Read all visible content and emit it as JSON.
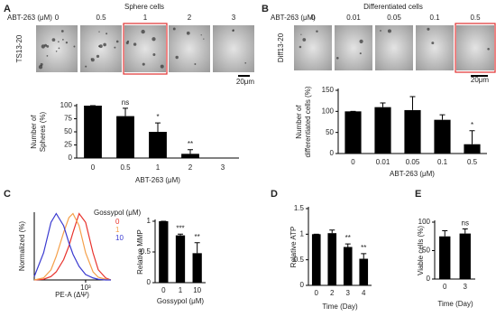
{
  "image_panels": [
    {
      "panel": "A",
      "title": "Sphere cells",
      "reagent": "ABT-263 (μM)",
      "doses": [
        "0",
        "0.5",
        "1",
        "2",
        "3"
      ],
      "cell_line": "TS13-20",
      "scale": "20μm"
    },
    {
      "panel": "B",
      "title": "Differentiated cells",
      "reagent": "ABT-263 (μM)",
      "doses": [
        "0",
        "0.01",
        "0.05",
        "0.1",
        "0.5"
      ],
      "cell_line": "Diff13-20",
      "scale": "20μm"
    }
  ],
  "chart_data": [
    {
      "type": "bar",
      "ylabel": [
        "Number of",
        "Spheres (%)"
      ],
      "xlabel": "ABT-263 (μM)",
      "categories": [
        "0",
        "0.5",
        "1",
        "2",
        "3"
      ],
      "values": [
        100,
        80,
        50,
        8,
        0
      ],
      "errors": [
        0,
        15,
        17,
        8,
        0
      ],
      "annotations": [
        null,
        "ns",
        "*",
        "**",
        null
      ],
      "color": "#000000",
      "ylim": [
        0,
        100
      ],
      "yticks": [
        0,
        25,
        50,
        75,
        100
      ]
    },
    {
      "type": "bar",
      "ylabel": [
        "Number of",
        "differentiated cells (%)"
      ],
      "xlabel": "ABT-263 (μM)",
      "categories": [
        "0",
        "0.01",
        "0.05",
        "0.1",
        "0.5"
      ],
      "values": [
        100,
        110,
        103,
        80,
        22
      ],
      "errors": [
        0,
        10,
        32,
        12,
        32
      ],
      "annotations": [
        null,
        null,
        null,
        null,
        "*"
      ],
      "color": "#000000",
      "ylim": [
        0,
        150
      ],
      "yticks": [
        0,
        50,
        100,
        150
      ]
    },
    {
      "type": "line",
      "panel": "C",
      "ylabel": "Normalized (%)",
      "xlabel": "PE-A (ΔΨ)",
      "log_x": true,
      "x": [
        60,
        100,
        150,
        200,
        300,
        400,
        500,
        700,
        1000,
        1500,
        2000,
        3000,
        4000
      ],
      "xlim": [
        60,
        4000
      ],
      "xticks": [
        {
          "value": 1000,
          "label": "10³"
        }
      ],
      "ylim": [
        0,
        100
      ],
      "legend_title": "Gossypol (μM)",
      "series": [
        {
          "name": "0",
          "color": "#e8322c",
          "values": [
            0,
            1,
            5,
            12,
            30,
            50,
            70,
            98,
            85,
            40,
            15,
            3,
            0
          ]
        },
        {
          "name": "1",
          "color": "#f5a04a",
          "values": [
            0,
            3,
            15,
            35,
            70,
            92,
            98,
            80,
            40,
            12,
            4,
            1,
            0
          ]
        },
        {
          "name": "10",
          "color": "#3a3ad0",
          "values": [
            5,
            40,
            85,
            98,
            80,
            55,
            38,
            20,
            8,
            3,
            1,
            0,
            0
          ]
        }
      ]
    },
    {
      "type": "bar",
      "ylabel": "Relative MMP",
      "xlabel": "Gossypol (μM)",
      "categories": [
        "0",
        "1",
        "10"
      ],
      "values": [
        1,
        0.77,
        0.48
      ],
      "errors": [
        0,
        0.02,
        0.17
      ],
      "annotations": [
        null,
        "***",
        "**"
      ],
      "color": "#000000",
      "ylim": [
        0,
        1
      ],
      "yticks": [
        0,
        0.5,
        1
      ]
    },
    {
      "type": "bar",
      "panel": "D",
      "ylabel": "Relative ATP",
      "xlabel": "Time (Day)",
      "categories": [
        "0",
        "2",
        "3",
        "4"
      ],
      "values": [
        1,
        1.02,
        0.75,
        0.52
      ],
      "errors": [
        0,
        0.06,
        0.06,
        0.1
      ],
      "annotations": [
        null,
        null,
        "**",
        "**"
      ],
      "color": "#000000",
      "ylim": [
        0,
        1.5
      ],
      "yticks": [
        0,
        0.5,
        1,
        1.5
      ]
    },
    {
      "type": "bar",
      "panel": "E",
      "ylabel": "Viable cells (%)",
      "xlabel": "Time (Day)",
      "categories": [
        "0",
        "3"
      ],
      "values": [
        75,
        80
      ],
      "errors": [
        10,
        8
      ],
      "annotations": [
        null,
        "ns"
      ],
      "color": "#000000",
      "ylim": [
        0,
        100
      ],
      "yticks": [
        0,
        50,
        100
      ]
    }
  ]
}
